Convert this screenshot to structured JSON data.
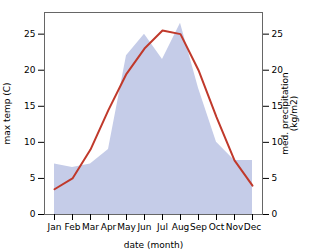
{
  "chart_data": {
    "type": "line",
    "categories": [
      "Jan",
      "Feb",
      "Mar",
      "Apr",
      "May",
      "Jun",
      "Jul",
      "Aug",
      "Sep",
      "Oct",
      "Nov",
      "Dec"
    ],
    "xlabel": "date (month)",
    "ylabel": "max temp (C)",
    "y2label": "med. precipitation\n(kg/m2)",
    "ylim": [
      0,
      28
    ],
    "yticks": [
      0,
      5,
      10,
      15,
      20,
      25
    ],
    "y2lim": [
      0,
      28
    ],
    "y2ticks": [
      0,
      5,
      10,
      15,
      20,
      25
    ],
    "grid": false,
    "series": [
      {
        "type": "area",
        "axis": "y2",
        "color": "#c5cce8",
        "values": [
          7.0,
          6.5,
          7.0,
          9.0,
          22.0,
          25.0,
          21.5,
          26.5,
          17.5,
          10.0,
          7.5,
          7.5
        ]
      },
      {
        "type": "line",
        "color": "#c0392b",
        "values": [
          3.5,
          5.0,
          9.0,
          14.5,
          19.5,
          23.0,
          25.5,
          25.0,
          20.0,
          13.5,
          7.5,
          4.0
        ]
      }
    ]
  }
}
